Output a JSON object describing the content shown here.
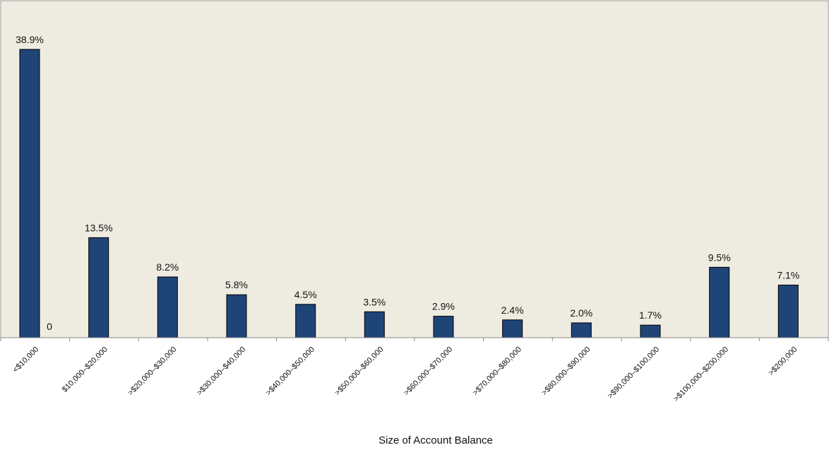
{
  "chart_data": {
    "type": "bar",
    "title": "",
    "xlabel": "Size of Account Balance",
    "ylabel": "",
    "categories": [
      "<$10,000",
      "$10,000–$20,000",
      ">$20,000–$30,000",
      ">$30,000–$40,000",
      ">$40,000–$50,000",
      ">$50,000–$60,000",
      ">$60,000–$70,000",
      ">$70,000–$80,000",
      ">$80,000–$90,000",
      ">$90,000–$100,000",
      ">$100,000–$200,000",
      ">$200,000"
    ],
    "series": [
      {
        "values": [
          38.9,
          13.5,
          8.2,
          5.8,
          4.5,
          3.5,
          2.9,
          2.4,
          2.0,
          1.7,
          9.5,
          7.1
        ],
        "labels": [
          "38.9%",
          "13.5%",
          "8.2%",
          "5.8%",
          "4.5%",
          "3.5%",
          "2.9%",
          "2.4%",
          "2.0%",
          "1.7%",
          "9.5%",
          "7.1%"
        ]
      }
    ],
    "annotations": [
      {
        "text": "0",
        "category": "<$10,000"
      }
    ],
    "ylim": [
      0,
      40
    ],
    "grid": false,
    "legend": "none",
    "colors": {
      "bar": "#1f4478",
      "bar_edge": "#000000",
      "plot_background": "#eeebe0",
      "axis": "#888888"
    }
  }
}
